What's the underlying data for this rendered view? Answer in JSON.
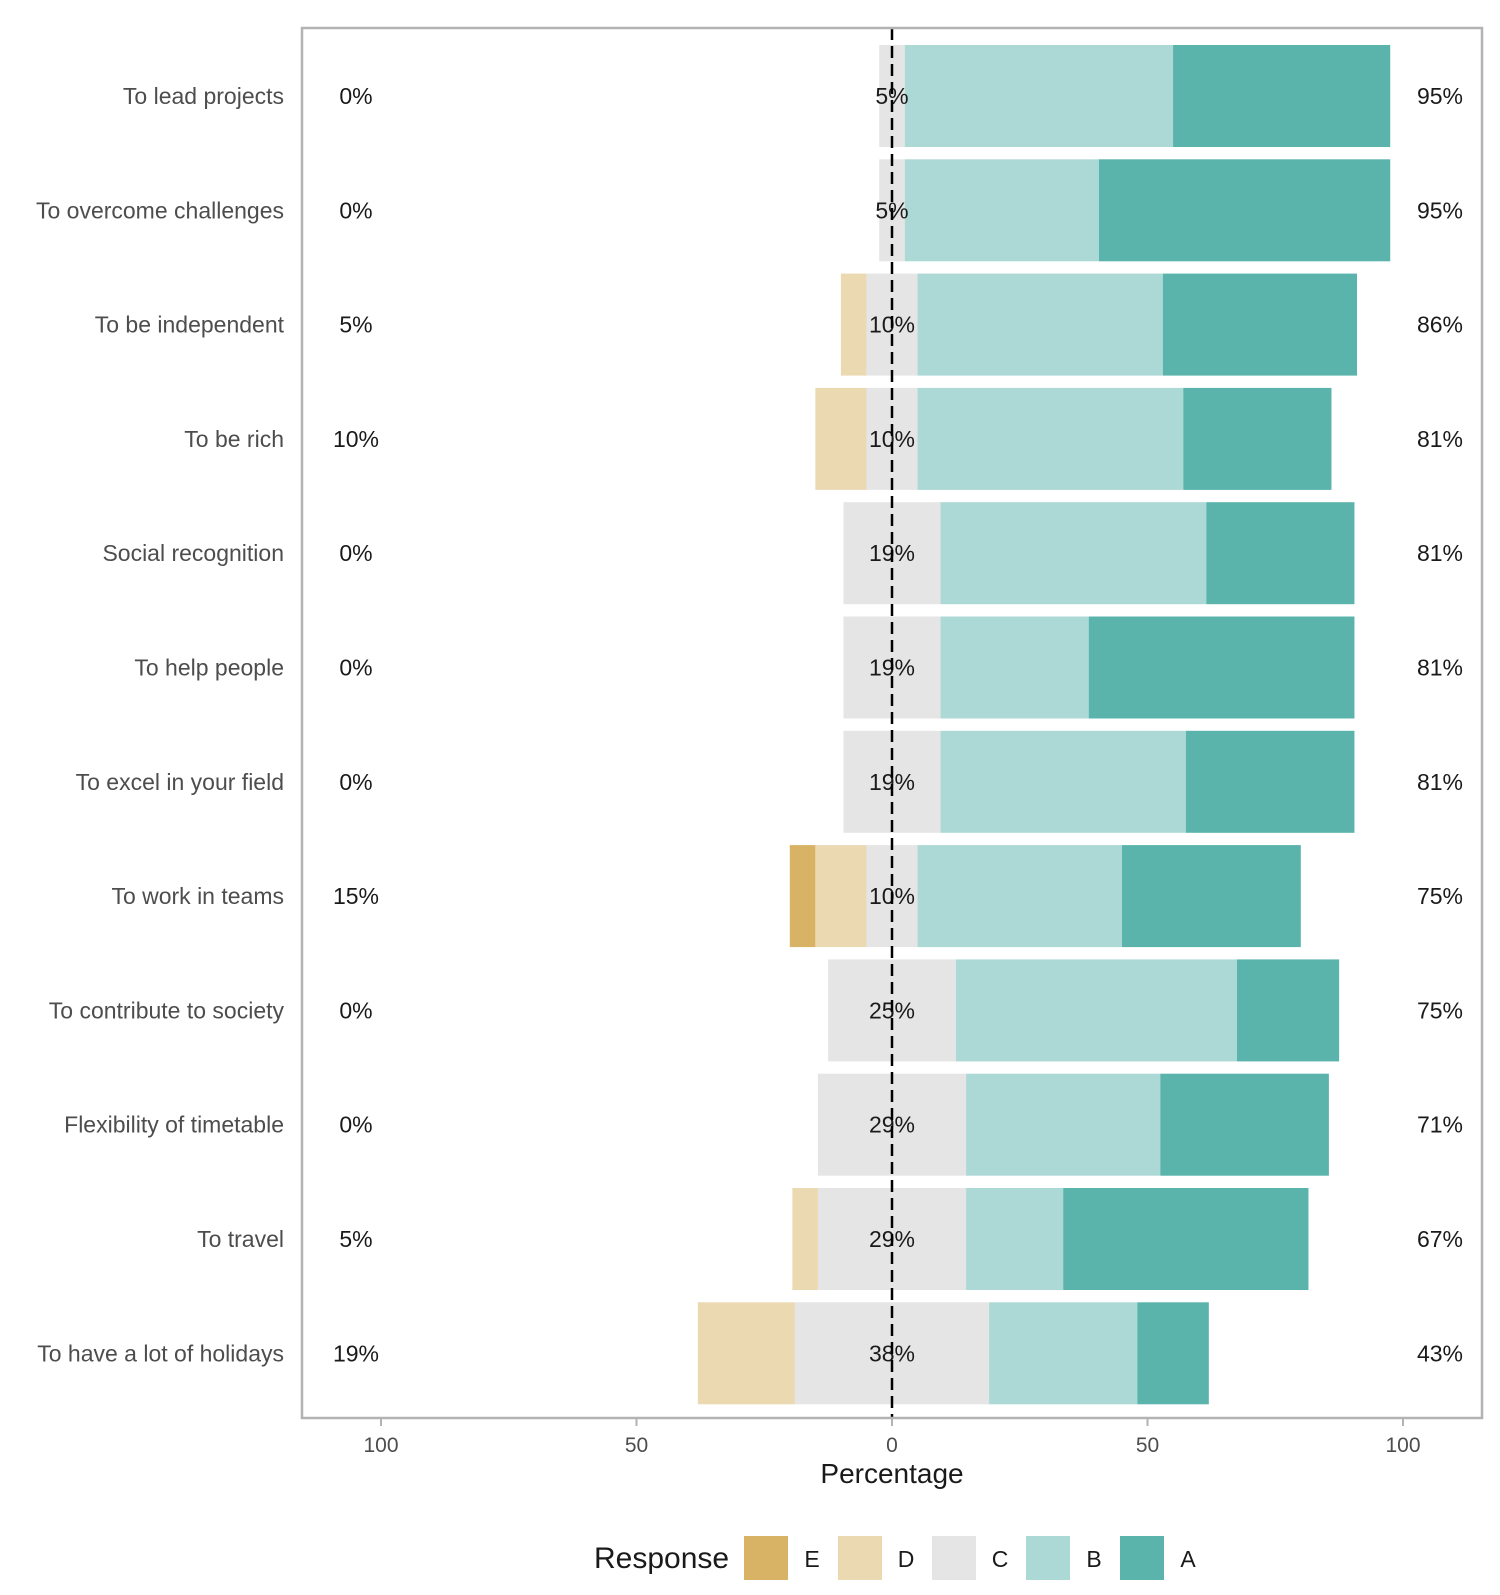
{
  "chart_data": {
    "type": "bar",
    "orientation": "horizontal-diverging",
    "xlabel": "Percentage",
    "xlim": [
      -100,
      100
    ],
    "xticks": [
      {
        "value": -100,
        "label": "100"
      },
      {
        "value": -50,
        "label": "50"
      },
      {
        "value": 0,
        "label": "0"
      },
      {
        "value": 50,
        "label": "50"
      },
      {
        "value": 100,
        "label": "100"
      }
    ],
    "legend": {
      "title": "Response",
      "placement": "bottom",
      "items": [
        {
          "key": "E",
          "label": "E",
          "color": "#D8B365"
        },
        {
          "key": "D",
          "label": "D",
          "color": "#EBD9B2"
        },
        {
          "key": "C",
          "label": "C",
          "color": "#E5E5E5"
        },
        {
          "key": "B",
          "label": "B",
          "color": "#ACD9D5"
        },
        {
          "key": "A",
          "label": "A",
          "color": "#5AB4AC"
        }
      ]
    },
    "neutral_line": {
      "color": "#000000",
      "style": "dashed"
    },
    "rows": [
      {
        "label": "To lead projects",
        "E": 0,
        "D": 0,
        "C": 5,
        "B": 52.5,
        "A": 42.5,
        "low_label": "0%",
        "neutral_label": "5%",
        "high_label": "95%"
      },
      {
        "label": "To overcome challenges",
        "E": 0,
        "D": 0,
        "C": 5,
        "B": 38,
        "A": 57,
        "low_label": "0%",
        "neutral_label": "5%",
        "high_label": "95%"
      },
      {
        "label": "To be independent",
        "E": 0,
        "D": 5,
        "C": 10,
        "B": 48,
        "A": 38,
        "low_label": "5%",
        "neutral_label": "10%",
        "high_label": "86%"
      },
      {
        "label": "To be rich",
        "E": 0,
        "D": 10,
        "C": 10,
        "B": 52,
        "A": 29,
        "low_label": "10%",
        "neutral_label": "10%",
        "high_label": "81%"
      },
      {
        "label": "Social recognition",
        "E": 0,
        "D": 0,
        "C": 19,
        "B": 52,
        "A": 29,
        "low_label": "0%",
        "neutral_label": "19%",
        "high_label": "81%"
      },
      {
        "label": "To help people",
        "E": 0,
        "D": 0,
        "C": 19,
        "B": 29,
        "A": 52,
        "low_label": "0%",
        "neutral_label": "19%",
        "high_label": "81%"
      },
      {
        "label": "To excel in your field",
        "E": 0,
        "D": 0,
        "C": 19,
        "B": 48,
        "A": 33,
        "low_label": "0%",
        "neutral_label": "19%",
        "high_label": "81%"
      },
      {
        "label": "To work in teams",
        "E": 5,
        "D": 10,
        "C": 10,
        "B": 40,
        "A": 35,
        "low_label": "15%",
        "neutral_label": "10%",
        "high_label": "75%"
      },
      {
        "label": "To contribute to society",
        "E": 0,
        "D": 0,
        "C": 25,
        "B": 55,
        "A": 20,
        "low_label": "0%",
        "neutral_label": "25%",
        "high_label": "75%"
      },
      {
        "label": "Flexibility of timetable",
        "E": 0,
        "D": 0,
        "C": 29,
        "B": 38,
        "A": 33,
        "low_label": "0%",
        "neutral_label": "29%",
        "high_label": "71%"
      },
      {
        "label": "To travel",
        "E": 0,
        "D": 5,
        "C": 29,
        "B": 19,
        "A": 48,
        "low_label": "5%",
        "neutral_label": "29%",
        "high_label": "67%"
      },
      {
        "label": "To have a lot of holidays",
        "E": 0,
        "D": 19,
        "C": 38,
        "B": 29,
        "A": 14,
        "low_label": "19%",
        "neutral_label": "38%",
        "high_label": "43%"
      }
    ]
  }
}
